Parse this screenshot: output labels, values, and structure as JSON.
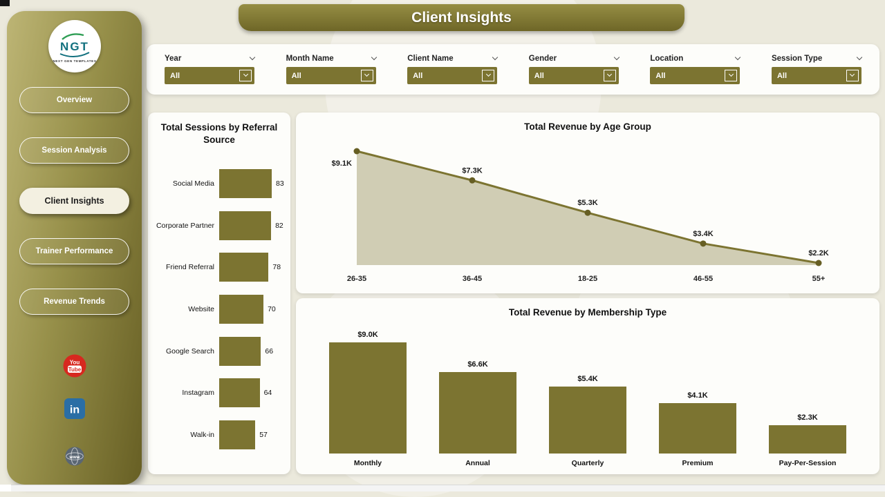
{
  "app": {
    "title": "Client Insights"
  },
  "colors": {
    "olive": "#7c7431",
    "olive_dark": "#665e23",
    "cream": "#f3f0e1",
    "panel": "#fdfdfa",
    "background": "#ebe9dc",
    "logo_teal": "#11707e",
    "youtube_red": "#d7281f",
    "linkedin_blue": "#2a6ea5",
    "globe_gray": "#5a6673"
  },
  "sidebar": {
    "logo": {
      "text": "NGT",
      "subtext": "NEXT GEN TEMPLATES"
    },
    "items": [
      {
        "label": "Overview",
        "active": false
      },
      {
        "label": "Session Analysis",
        "active": false
      },
      {
        "label": "Client Insights",
        "active": true
      },
      {
        "label": "Trainer Performance",
        "active": false
      },
      {
        "label": "Revenue Trends",
        "active": false
      }
    ],
    "social": [
      {
        "name": "youtube",
        "text_top": "You",
        "text_bottom": "Tube"
      },
      {
        "name": "linkedin",
        "text": "in"
      },
      {
        "name": "website",
        "text": "www"
      }
    ]
  },
  "filters": [
    {
      "label": "Year",
      "value": "All"
    },
    {
      "label": "Month Name",
      "value": "All"
    },
    {
      "label": "Client Name",
      "value": "All"
    },
    {
      "label": "Gender",
      "value": "All"
    },
    {
      "label": "Location",
      "value": "All"
    },
    {
      "label": "Session Type",
      "value": "All"
    }
  ],
  "chart_data": [
    {
      "type": "bar",
      "orientation": "horizontal",
      "title": "Total Sessions by Referral Source",
      "categories": [
        "Social Media",
        "Corporate Partner",
        "Friend Referral",
        "Website",
        "Google Search",
        "Instagram",
        "Walk-in"
      ],
      "values": [
        83,
        82,
        78,
        70,
        66,
        64,
        57
      ],
      "xlabel": "",
      "ylabel": "",
      "grid": false,
      "legend": false
    },
    {
      "type": "area",
      "title": "Total Revenue by Age Group",
      "categories": [
        "26-35",
        "36-45",
        "18-25",
        "46-55",
        "55+"
      ],
      "values": [
        9.1,
        7.3,
        5.3,
        3.4,
        2.2
      ],
      "labels": [
        "$9.1K",
        "$7.3K",
        "$5.3K",
        "$3.4K",
        "$2.2K"
      ],
      "xlabel": "",
      "ylabel": "",
      "grid": false,
      "legend": false
    },
    {
      "type": "bar",
      "orientation": "vertical",
      "title": "Total Revenue by Membership Type",
      "categories": [
        "Monthly",
        "Annual",
        "Quarterly",
        "Premium",
        "Pay-Per-Session"
      ],
      "values": [
        9.0,
        6.6,
        5.4,
        4.1,
        2.3
      ],
      "labels": [
        "$9.0K",
        "$6.6K",
        "$5.4K",
        "$4.1K",
        "$2.3K"
      ],
      "xlabel": "",
      "ylabel": "",
      "grid": false,
      "legend": false
    }
  ]
}
